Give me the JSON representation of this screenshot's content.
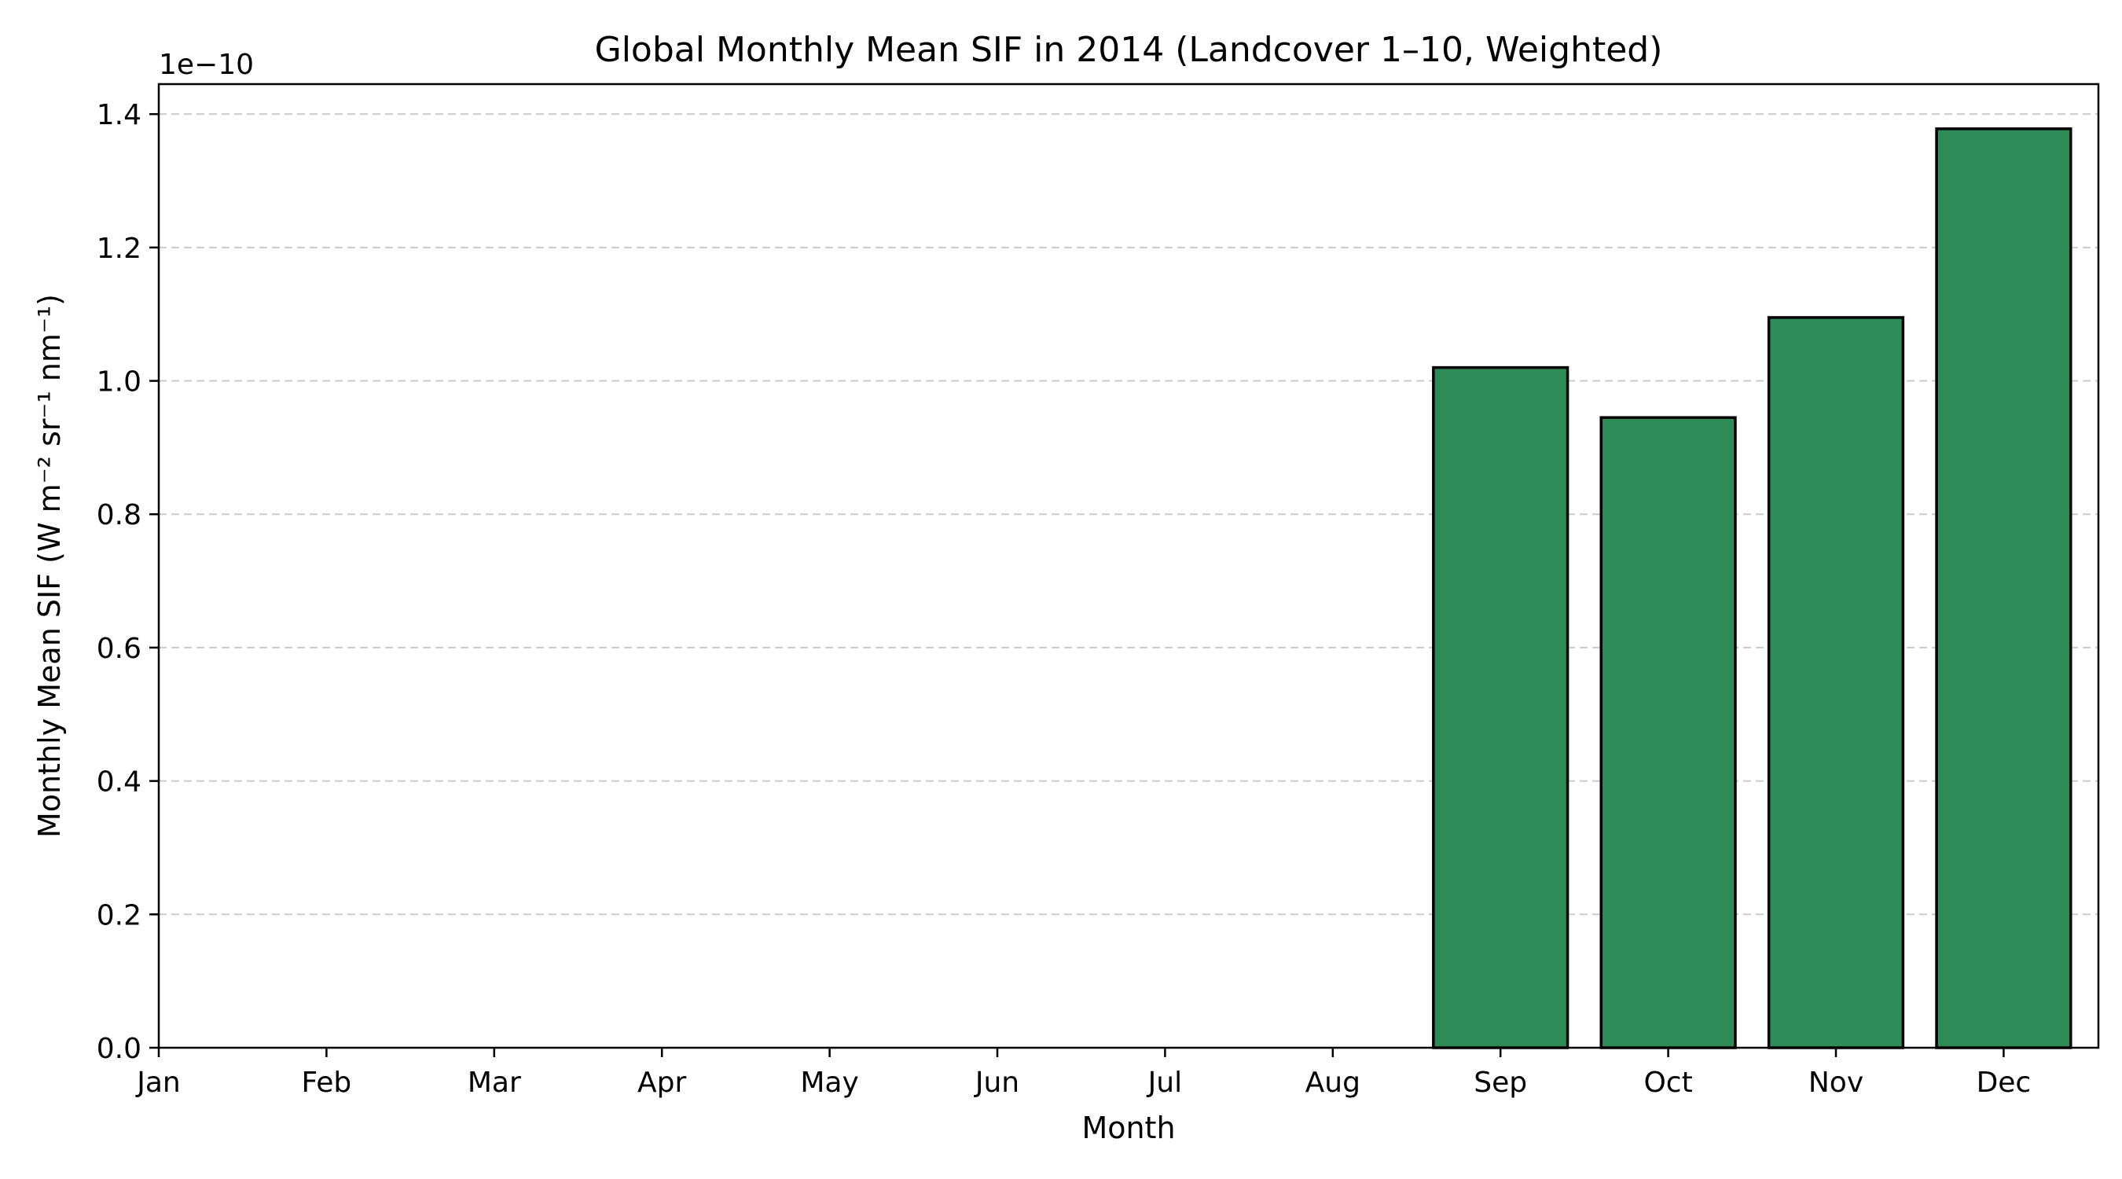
{
  "chart_data": {
    "type": "bar",
    "title": "Global Monthly Mean SIF in 2014 (Landcover 1–10, Weighted)",
    "xlabel": "Month",
    "ylabel": "Monthly Mean SIF (W m⁻² sr⁻¹ nm⁻¹)",
    "offset_label": "1e−10",
    "categories": [
      "Jan",
      "Feb",
      "Mar",
      "Apr",
      "May",
      "Jun",
      "Jul",
      "Aug",
      "Sep",
      "Oct",
      "Nov",
      "Dec"
    ],
    "values": [
      0,
      0,
      0,
      0,
      0,
      0,
      0,
      0,
      1.02,
      0.945,
      1.095,
      1.378
    ],
    "value_scale": "1e-10",
    "ylim": [
      0,
      1.445
    ],
    "yticks": [
      0.0,
      0.2,
      0.4,
      0.6,
      0.8,
      1.0,
      1.2,
      1.4
    ],
    "ytick_labels": [
      "0.0",
      "0.2",
      "0.4",
      "0.6",
      "0.8",
      "1.0",
      "1.2",
      "1.4"
    ],
    "grid": "y-dashed",
    "bar_color": "#2e8b57"
  }
}
